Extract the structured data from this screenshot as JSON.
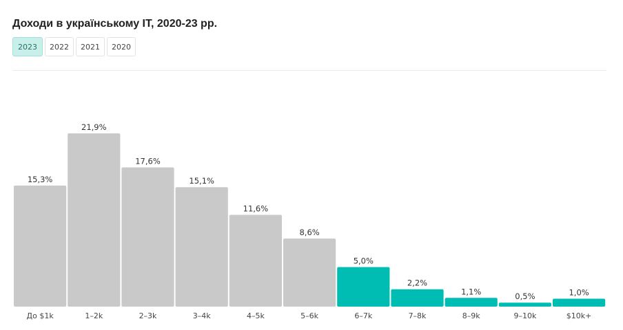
{
  "page": {
    "title": "Доходи в українському IT, 2020-23 рр."
  },
  "tabs": [
    {
      "label": "2023",
      "active": true
    },
    {
      "label": "2022",
      "active": false
    },
    {
      "label": "2021",
      "active": false
    },
    {
      "label": "2020",
      "active": false
    }
  ],
  "colors": {
    "bar_default": "#c9c9c9",
    "bar_highlight": "#00bdb3"
  },
  "chart_data": {
    "type": "bar",
    "categories": [
      "До $1k",
      "1–2k",
      "2–3k",
      "3–4k",
      "4–5k",
      "5–6k",
      "6–7k",
      "7–8k",
      "8–9k",
      "9–10k",
      "$10k+"
    ],
    "values": [
      15.3,
      21.9,
      17.6,
      15.1,
      11.6,
      8.6,
      5.0,
      2.2,
      1.1,
      0.5,
      1.0
    ],
    "value_labels": [
      "15,3%",
      "21,9%",
      "17,6%",
      "15,1%",
      "11,6%",
      "8,6%",
      "5,0%",
      "2,2%",
      "1,1%",
      "0,5%",
      "1,0%"
    ],
    "highlighted": [
      false,
      false,
      false,
      false,
      false,
      false,
      true,
      true,
      true,
      true,
      true
    ],
    "title": "Доходи в українському IT, 2020-23 рр.",
    "xlabel": "",
    "ylabel": "",
    "ylim": [
      0,
      21.9
    ],
    "grid": false,
    "legend": "none"
  }
}
